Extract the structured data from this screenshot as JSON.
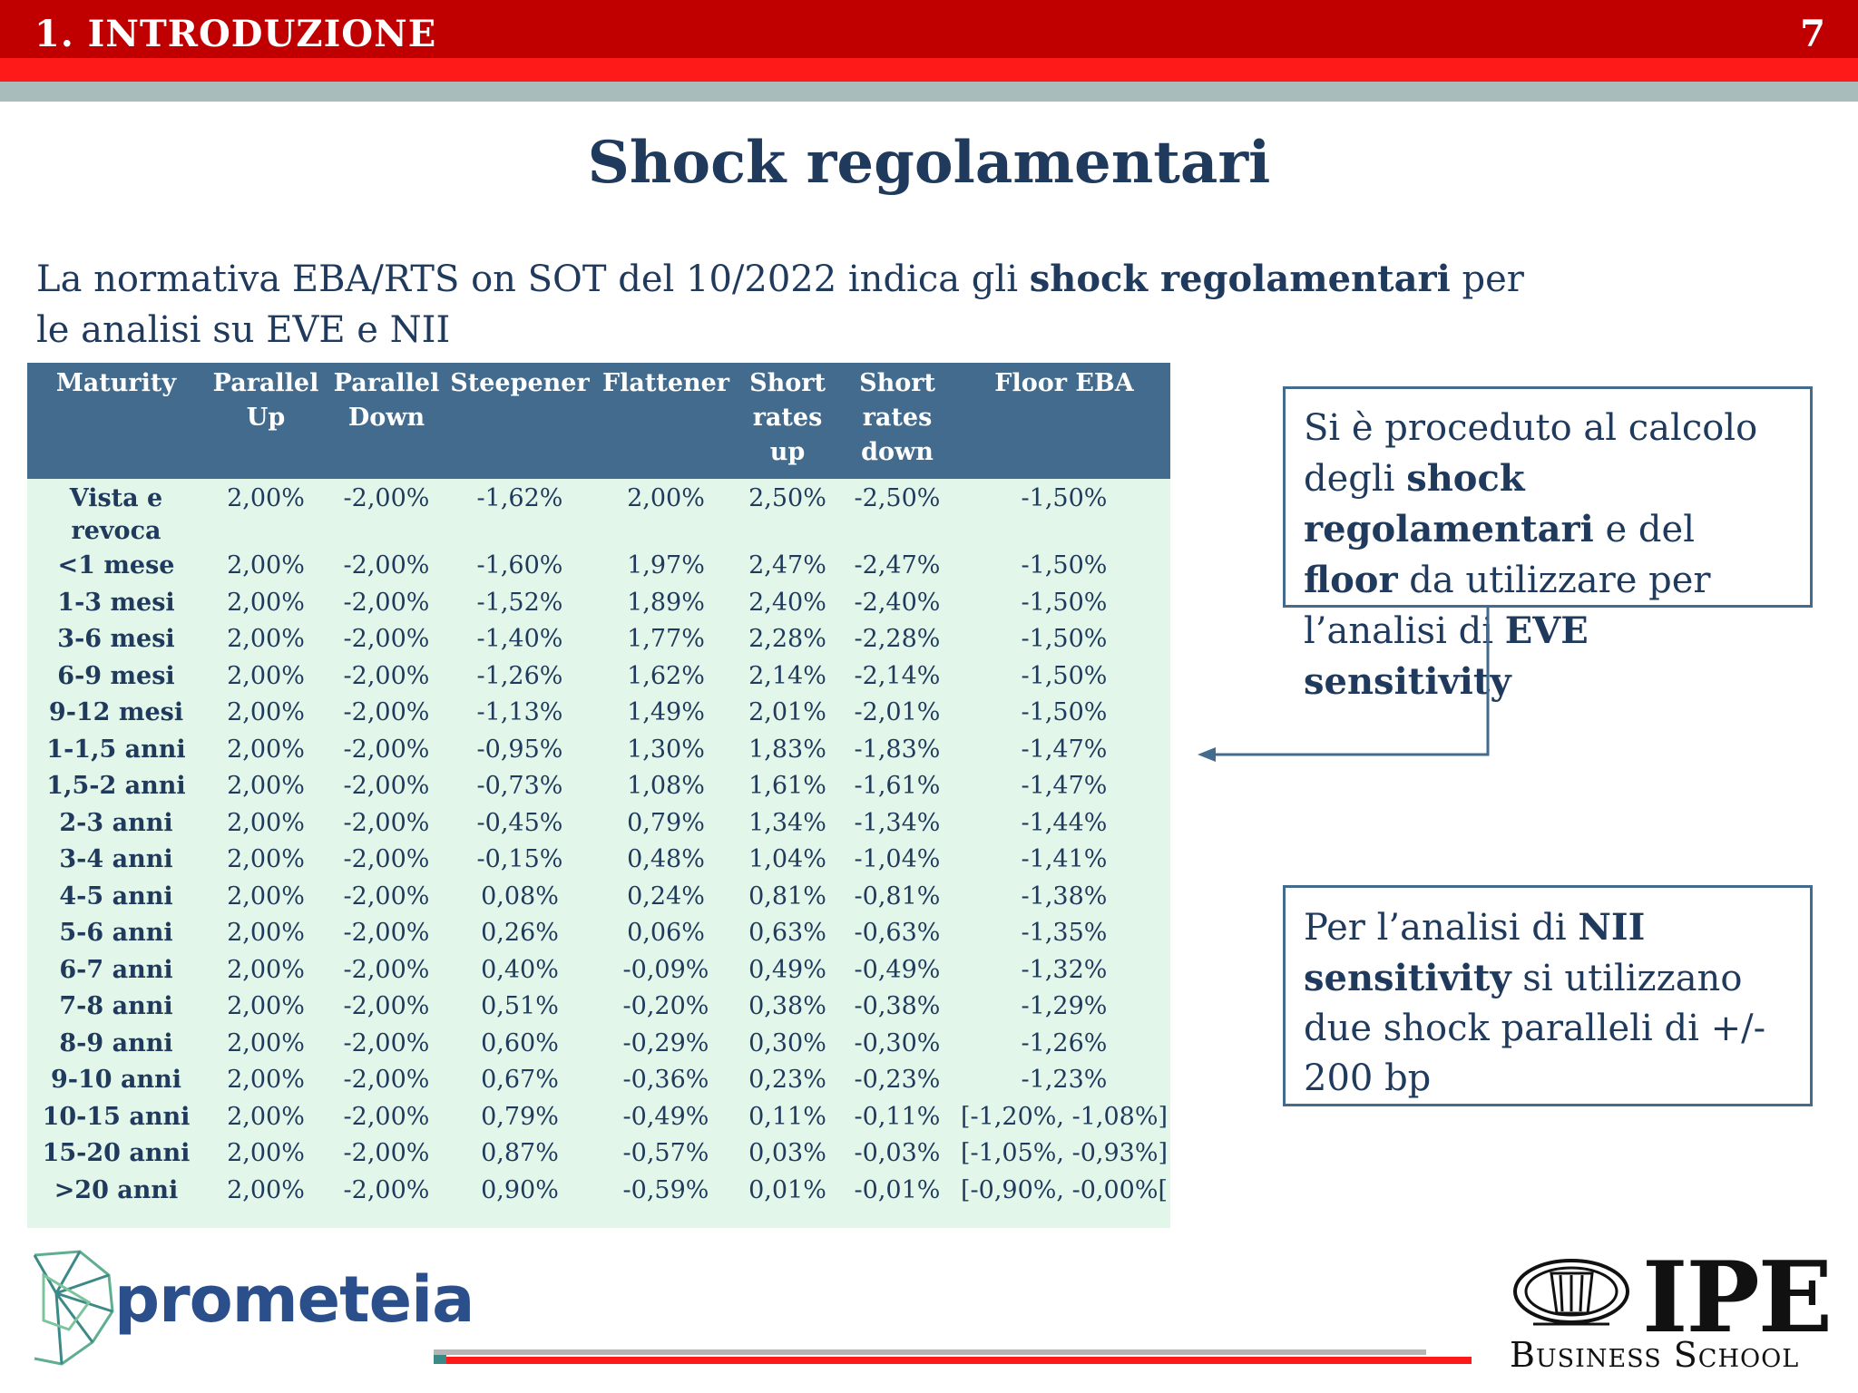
{
  "header": {
    "section": "1. INTRODUZIONE",
    "page_number": "7"
  },
  "title": "Shock regolamentari",
  "intro": {
    "text_before": "La normativa EBA/RTS on SOT del 10/2022 indica gli ",
    "bold": "shock regolamentari",
    "text_after": " per le analisi su EVE e NII"
  },
  "table": {
    "headers": [
      "Maturity",
      "Parallel Up",
      "Parallel Down",
      "Steepener",
      "Flattener",
      "Short rates up",
      "Short rates down",
      "Floor EBA"
    ],
    "rows": [
      [
        "Vista e revoca",
        "2,00%",
        "-2,00%",
        "-1,62%",
        "2,00%",
        "2,50%",
        "-2,50%",
        "-1,50%"
      ],
      [
        "<1 mese",
        "2,00%",
        "-2,00%",
        "-1,60%",
        "1,97%",
        "2,47%",
        "-2,47%",
        "-1,50%"
      ],
      [
        "1-3 mesi",
        "2,00%",
        "-2,00%",
        "-1,52%",
        "1,89%",
        "2,40%",
        "-2,40%",
        "-1,50%"
      ],
      [
        "3-6 mesi",
        "2,00%",
        "-2,00%",
        "-1,40%",
        "1,77%",
        "2,28%",
        "-2,28%",
        "-1,50%"
      ],
      [
        "6-9 mesi",
        "2,00%",
        "-2,00%",
        "-1,26%",
        "1,62%",
        "2,14%",
        "-2,14%",
        "-1,50%"
      ],
      [
        "9-12 mesi",
        "2,00%",
        "-2,00%",
        "-1,13%",
        "1,49%",
        "2,01%",
        "-2,01%",
        "-1,50%"
      ],
      [
        "1-1,5 anni",
        "2,00%",
        "-2,00%",
        "-0,95%",
        "1,30%",
        "1,83%",
        "-1,83%",
        "-1,47%"
      ],
      [
        "1,5-2 anni",
        "2,00%",
        "-2,00%",
        "-0,73%",
        "1,08%",
        "1,61%",
        "-1,61%",
        "-1,47%"
      ],
      [
        "2-3 anni",
        "2,00%",
        "-2,00%",
        "-0,45%",
        "0,79%",
        "1,34%",
        "-1,34%",
        "-1,44%"
      ],
      [
        "3-4 anni",
        "2,00%",
        "-2,00%",
        "-0,15%",
        "0,48%",
        "1,04%",
        "-1,04%",
        "-1,41%"
      ],
      [
        "4-5 anni",
        "2,00%",
        "-2,00%",
        "0,08%",
        "0,24%",
        "0,81%",
        "-0,81%",
        "-1,38%"
      ],
      [
        "5-6 anni",
        "2,00%",
        "-2,00%",
        "0,26%",
        "0,06%",
        "0,63%",
        "-0,63%",
        "-1,35%"
      ],
      [
        "6-7 anni",
        "2,00%",
        "-2,00%",
        "0,40%",
        "-0,09%",
        "0,49%",
        "-0,49%",
        "-1,32%"
      ],
      [
        "7-8 anni",
        "2,00%",
        "-2,00%",
        "0,51%",
        "-0,20%",
        "0,38%",
        "-0,38%",
        "-1,29%"
      ],
      [
        "8-9 anni",
        "2,00%",
        "-2,00%",
        "0,60%",
        "-0,29%",
        "0,30%",
        "-0,30%",
        "-1,26%"
      ],
      [
        "9-10 anni",
        "2,00%",
        "-2,00%",
        "0,67%",
        "-0,36%",
        "0,23%",
        "-0,23%",
        "-1,23%"
      ],
      [
        "10-15 anni",
        "2,00%",
        "-2,00%",
        "0,79%",
        "-0,49%",
        "0,11%",
        "-0,11%",
        "[-1,20%, -1,08%]"
      ],
      [
        "15-20 anni",
        "2,00%",
        "-2,00%",
        "0,87%",
        "-0,57%",
        "0,03%",
        "-0,03%",
        "[-1,05%, -0,93%]"
      ],
      [
        ">20 anni",
        "2,00%",
        "-2,00%",
        "0,90%",
        "-0,59%",
        "0,01%",
        "-0,01%",
        "[-0,90%, -0,00%["
      ]
    ]
  },
  "box_eve": {
    "t1": "Si è proceduto al calcolo degli ",
    "b1": "shock regolamentari",
    "t2": " e del ",
    "b2": "floor",
    "t3": " da utilizzare per l’analisi di ",
    "b3": "EVE sensitivity"
  },
  "box_nii": {
    "t1": "Per l’analisi di ",
    "b1": "NII sensitivity",
    "t2": " si utilizzano due shock paralleli di +/- 200 bp"
  },
  "footer": {
    "prometeia_logo": "prometeia",
    "ipe_logo": "IPE",
    "ipe_sub": "Business School"
  }
}
